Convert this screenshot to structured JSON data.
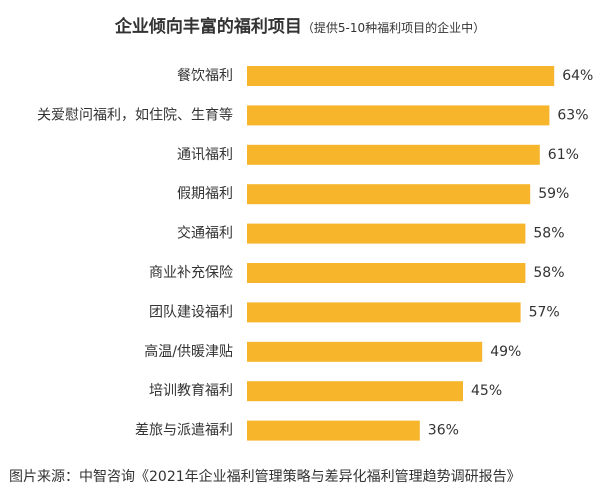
{
  "chart_data": {
    "type": "bar",
    "orientation": "horizontal",
    "title": "企业倾向丰富的福利项目",
    "subtitle": "（提供5-10种福利项目的企业中）",
    "categories": [
      "餐饮福利",
      "关爱慰问福利，如住院、生育等",
      "通讯福利",
      "假期福利",
      "交通福利",
      "商业补充保险",
      "团队建设福利",
      "高温/供暖津贴",
      "培训教育福利",
      "差旅与派遣福利"
    ],
    "values": [
      64,
      63,
      61,
      59,
      58,
      58,
      57,
      49,
      45,
      36
    ],
    "value_labels": [
      "64%",
      "63%",
      "61%",
      "59%",
      "58%",
      "58%",
      "57%",
      "49%",
      "45%",
      "36%"
    ],
    "xlim": [
      0,
      100
    ],
    "grid": false,
    "legend": "none",
    "bar_color": "#F7B52C"
  },
  "source": "图片来源：中智咨询《2021年企业福利管理策略与差异化福利管理趋势调研报告》"
}
